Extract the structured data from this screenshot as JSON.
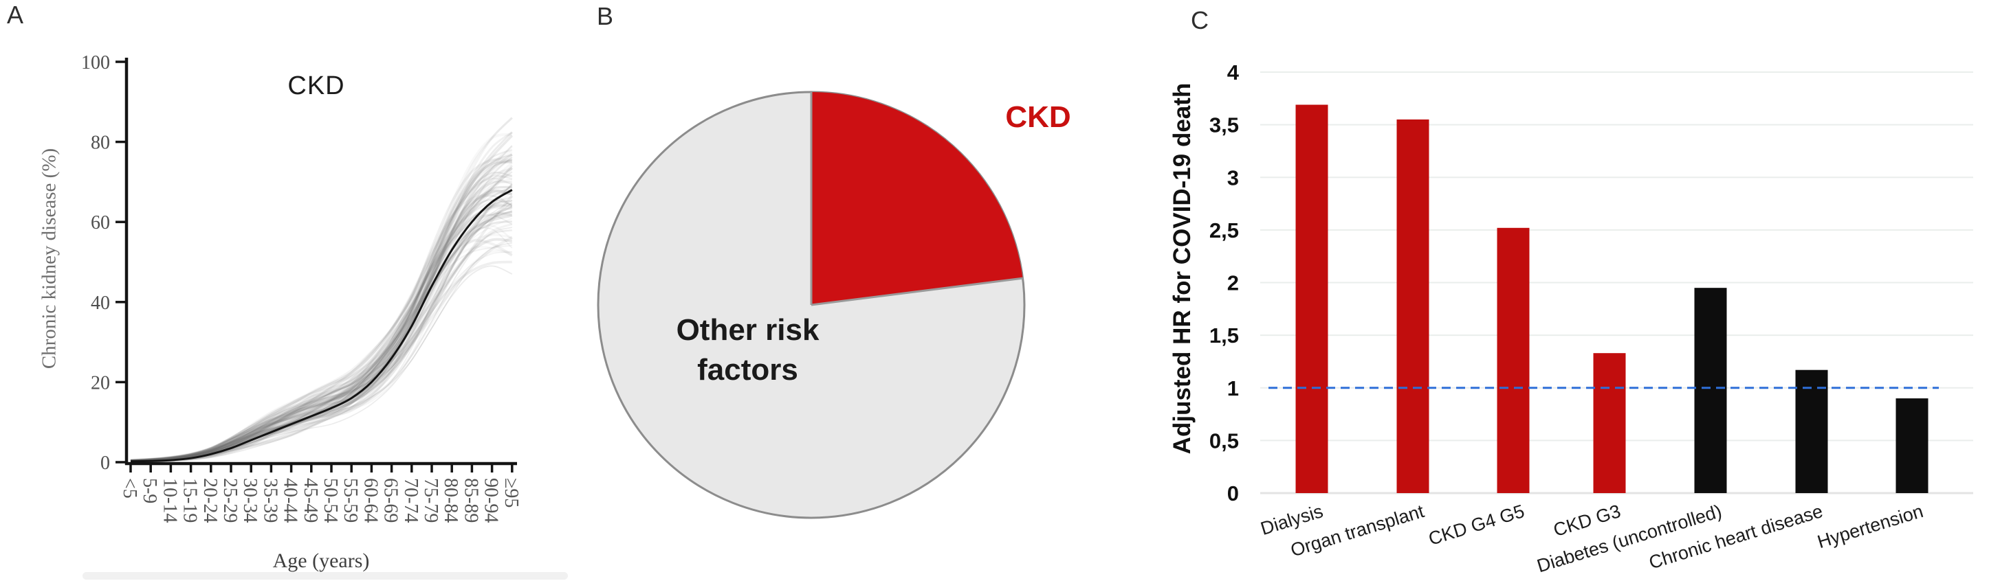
{
  "chart_data": [
    {
      "panel_letter": "A",
      "type": "line",
      "title": "CKD",
      "xlabel": "Age (years)",
      "ylabel": "Chronic kidney disease (%)",
      "ylim": [
        0,
        100
      ],
      "yticks": [
        0,
        20,
        40,
        60,
        80,
        100
      ],
      "categories": [
        "<5",
        "5-9",
        "10-14",
        "15-19",
        "20-24",
        "25-29",
        "30-34",
        "35-39",
        "40-44",
        "45-49",
        "50-54",
        "55-59",
        "60-64",
        "65-69",
        "70-74",
        "75-79",
        "80-84",
        "85-89",
        "90-94",
        "≥95"
      ],
      "series": [
        {
          "name": "median",
          "color": "#141414",
          "values": [
            0.2,
            0.3,
            0.5,
            1,
            2,
            3.5,
            5.5,
            7.5,
            9.5,
            11.5,
            13.5,
            16,
            20,
            26,
            34,
            44,
            53,
            60,
            65,
            68
          ]
        },
        {
          "name": "envelope-high",
          "color": "#9a9a9a",
          "values": [
            0.5,
            0.8,
            1.3,
            2.2,
            3.8,
            6.5,
            9.5,
            12.5,
            15,
            17.5,
            20,
            23,
            28,
            35,
            44.5,
            56,
            66.5,
            75,
            81,
            86
          ]
        },
        {
          "name": "envelope-low",
          "color": "#9a9a9a",
          "values": [
            0.1,
            0.15,
            0.3,
            0.6,
            1.2,
            2.2,
            3.5,
            5,
            6.5,
            8,
            9.5,
            11.5,
            14.5,
            19,
            25.5,
            33.5,
            41.5,
            47,
            49,
            47
          ]
        }
      ],
      "background_lines": {
        "count": 85,
        "color": "#707070"
      },
      "grid": false,
      "legend": false
    },
    {
      "panel_letter": "B",
      "type": "pie",
      "slices": [
        {
          "label": "CKD",
          "pct": 23,
          "color": "#cc1013",
          "label_color": "#c8100f"
        },
        {
          "label": "Other risk factors",
          "pct": 77,
          "color": "#e8e8e8",
          "label_color": "#1a1a1a"
        }
      ],
      "start_angle_deg": 0,
      "direction": "clockwise",
      "outline_color": "#8c8c8c"
    },
    {
      "panel_letter": "C",
      "type": "bar",
      "ylabel": "Adjusted HR for COVID-19 death",
      "ylim": [
        0,
        4
      ],
      "ytick_step": 0.5,
      "ytick_labels": [
        "0",
        "0,5",
        "1",
        "1,5",
        "2",
        "2,5",
        "3",
        "3,5",
        "4"
      ],
      "categories": [
        "Dialysis",
        "Organ transplant",
        "CKD G4 G5",
        "CKD G3",
        "Diabetes (uncontrolled)",
        "Chronic heart disease",
        "Hypertension"
      ],
      "values": [
        3.69,
        3.55,
        2.52,
        1.33,
        1.95,
        1.17,
        0.9
      ],
      "bar_colors": [
        "#c10d0d",
        "#c10d0d",
        "#c10d0d",
        "#c10d0d",
        "#0d0d0d",
        "#0d0d0d",
        "#0d0d0d"
      ],
      "reference_line": {
        "value": 1,
        "color": "#2e6fd8",
        "style": "dashed"
      },
      "grid": true,
      "gridline_color": "#eaeeec",
      "legend": false
    }
  ]
}
